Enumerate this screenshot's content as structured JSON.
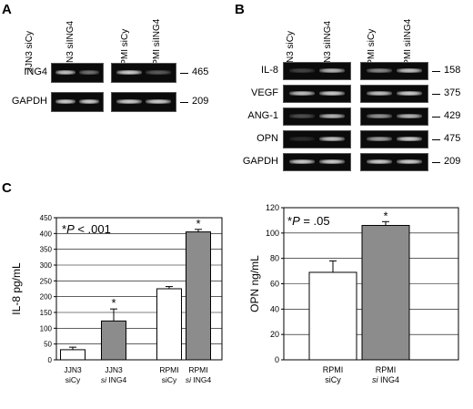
{
  "panels": {
    "A": {
      "letter": "A",
      "lanes_left": [
        "JJN3 siCy",
        "JJN3 siING4"
      ],
      "lanes_right": [
        "RPMI siCy",
        "RPMI siING4"
      ],
      "rows": [
        {
          "label": "ING4",
          "size": "465",
          "intensity": [
            0.8,
            0.45,
            0.85,
            0.35
          ]
        },
        {
          "label": "GAPDH",
          "size": "209",
          "intensity": [
            0.85,
            0.85,
            0.85,
            0.85
          ]
        }
      ]
    },
    "B": {
      "letter": "B",
      "lanes_left": [
        "JJN3 siCy",
        "JJN3 siING4"
      ],
      "lanes_right": [
        "RPMI siCy",
        "RPMI siING4"
      ],
      "rows": [
        {
          "label": "IL-8",
          "size": "158",
          "intensity": [
            0.25,
            0.75,
            0.55,
            0.8
          ]
        },
        {
          "label": "VEGF",
          "size": "375",
          "intensity": [
            0.8,
            0.85,
            0.8,
            0.85
          ]
        },
        {
          "label": "ANG-1",
          "size": "429",
          "intensity": [
            0.3,
            0.75,
            0.6,
            0.75
          ]
        },
        {
          "label": "OPN",
          "size": "475",
          "intensity": [
            0.15,
            0.8,
            0.65,
            0.85
          ]
        },
        {
          "label": "GAPDH",
          "size": "209",
          "intensity": [
            0.85,
            0.85,
            0.85,
            0.85
          ]
        }
      ]
    },
    "C": {
      "letter": "C"
    }
  },
  "chart_data": [
    {
      "type": "bar",
      "ylabel": "IL-8 pg/mL",
      "ylim": [
        0,
        450
      ],
      "yticks": [
        0,
        50,
        100,
        150,
        200,
        250,
        300,
        350,
        400,
        450
      ],
      "annotation_prefix": "*",
      "annotation_p": "P",
      "annotation_value": " < .001",
      "categories": [
        {
          "line1": "JJN3",
          "line2": "siCy"
        },
        {
          "line1": "JJN3",
          "line2_italic": "si",
          "line2": " ING4"
        },
        {
          "line1": "RPMI",
          "line2": "siCy"
        },
        {
          "line1": "RPMI",
          "line2_italic": "si",
          "line2": " ING4"
        }
      ],
      "values": [
        32,
        123,
        225,
        405
      ],
      "errors": [
        8,
        38,
        7,
        8
      ],
      "fills": [
        "#ffffff",
        "#8c8c8c",
        "#ffffff",
        "#8c8c8c"
      ],
      "significance": [
        "",
        "*",
        "",
        "*"
      ],
      "grid": true
    },
    {
      "type": "bar",
      "ylabel": "OPN ng/mL",
      "ylim": [
        0,
        120
      ],
      "yticks": [
        0,
        20,
        40,
        60,
        80,
        100,
        120
      ],
      "annotation_prefix": "*",
      "annotation_p": "P",
      "annotation_value": " = .05",
      "categories": [
        {
          "line1": "RPMI",
          "line2": "siCy"
        },
        {
          "line1": "RPMI",
          "line2_italic": "si",
          "line2": " ING4"
        }
      ],
      "values": [
        69,
        106
      ],
      "errors": [
        9,
        3
      ],
      "fills": [
        "#ffffff",
        "#8c8c8c"
      ],
      "significance": [
        "",
        "*"
      ],
      "grid": true
    }
  ]
}
